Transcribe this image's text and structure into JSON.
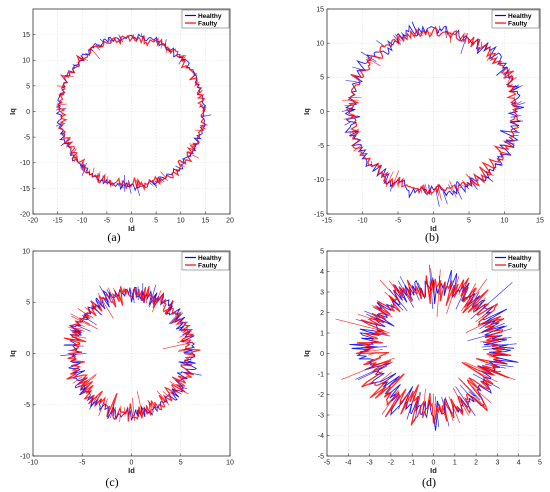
{
  "chart_data": [
    {
      "type": "scatter",
      "panel_label": "(a)",
      "xlabel": "Id",
      "ylabel": "Iq",
      "xlim": [
        -20,
        20
      ],
      "ylim": [
        -20,
        20
      ],
      "xticks": [
        -20,
        -15,
        -10,
        -5,
        0,
        5,
        10,
        15,
        20
      ],
      "yticks": [
        -20,
        -15,
        -10,
        -5,
        0,
        5,
        10,
        15
      ],
      "grid": true,
      "legend": "top-right",
      "series": [
        {
          "name": "Healthy",
          "color": "#0000ff",
          "center": [
            0,
            0
          ],
          "radius": 14.6,
          "noise": 0.35
        },
        {
          "name": "Faulty",
          "color": "#ff0000",
          "center": [
            0,
            0
          ],
          "radius": 14.4,
          "noise": 0.45
        }
      ]
    },
    {
      "type": "scatter",
      "panel_label": "(b)",
      "xlabel": "Id",
      "ylabel": "Iq",
      "xlim": [
        -15,
        15
      ],
      "ylim": [
        -15,
        15
      ],
      "xticks": [
        -15,
        -10,
        -5,
        0,
        5,
        10,
        15
      ],
      "yticks": [
        -15,
        -10,
        -5,
        0,
        5,
        10,
        15
      ],
      "grid": true,
      "legend": "top-right",
      "series": [
        {
          "name": "Healthy",
          "color": "#0000ff",
          "center": [
            0,
            0
          ],
          "radius": 11.8,
          "noise": 0.5
        },
        {
          "name": "Faulty",
          "color": "#ff0000",
          "center": [
            0,
            0
          ],
          "radius": 11.6,
          "noise": 0.45
        }
      ]
    },
    {
      "type": "scatter",
      "panel_label": "(c)",
      "xlabel": "Id",
      "ylabel": "Iq",
      "xlim": [
        -10,
        10
      ],
      "ylim": [
        -10,
        10
      ],
      "xticks": [
        -10,
        -5,
        0,
        5,
        10
      ],
      "yticks": [
        -10,
        -5,
        0,
        5,
        10
      ],
      "grid": true,
      "legend": "top-right",
      "series": [
        {
          "name": "Healthy",
          "color": "#0000ff",
          "center": [
            0,
            0
          ],
          "radius": 5.9,
          "noise": 0.4
        },
        {
          "name": "Faulty",
          "color": "#ff0000",
          "center": [
            0,
            0
          ],
          "radius": 5.8,
          "noise": 0.5
        }
      ]
    },
    {
      "type": "scatter",
      "panel_label": "(d)",
      "xlabel": "Id",
      "ylabel": "Iq",
      "xlim": [
        -5,
        5
      ],
      "ylim": [
        -5,
        5
      ],
      "xticks": [
        -5,
        -4,
        -3,
        -2,
        -1,
        0,
        1,
        2,
        3,
        4,
        5
      ],
      "yticks": [
        -5,
        -4,
        -3,
        -2,
        -1,
        0,
        1,
        2,
        3,
        4,
        5
      ],
      "grid": true,
      "legend": "top-right",
      "series": [
        {
          "name": "Healthy",
          "color": "#0000ff",
          "center": [
            0,
            0.25
          ],
          "radius": 3.0,
          "noise": 0.35
        },
        {
          "name": "Faulty",
          "color": "#ff0000",
          "center": [
            0,
            0.35
          ],
          "radius": 2.9,
          "noise": 0.45
        }
      ]
    }
  ]
}
